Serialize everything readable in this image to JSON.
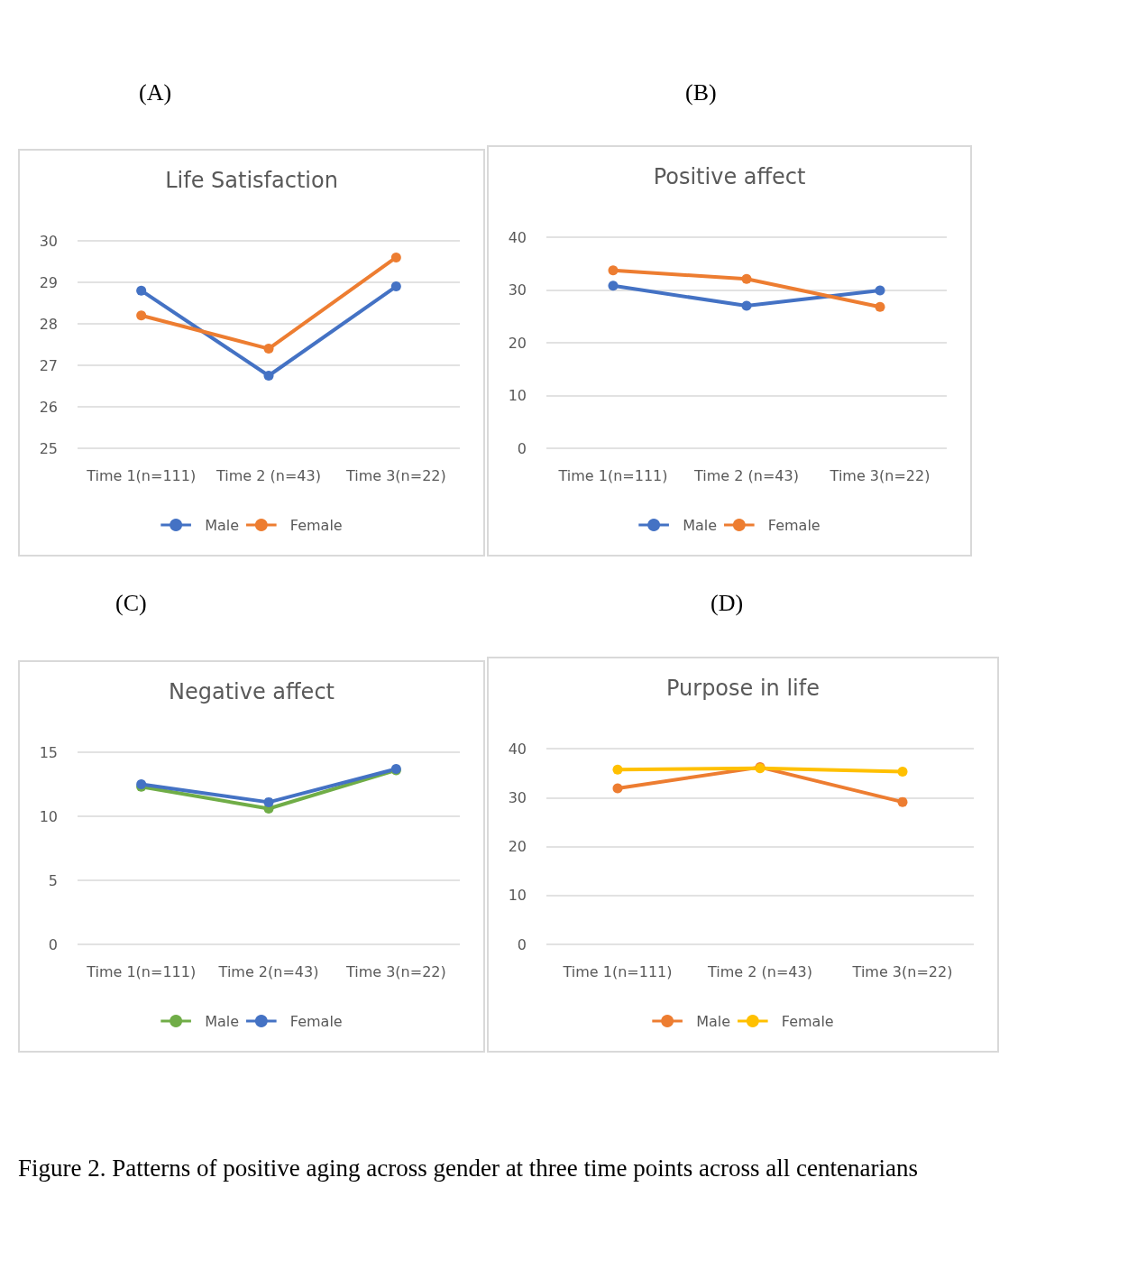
{
  "chart_data": [
    {
      "type": "line",
      "title": "Life Satisfaction",
      "categories": [
        "Time 1(n=111)",
        "Time 2 (n=43)",
        "Time 3(n=22)"
      ],
      "series": [
        {
          "name": "Male",
          "color": "#4472c4",
          "values": [
            28.8,
            26.75,
            28.9
          ]
        },
        {
          "name": "Female",
          "color": "#ed7d31",
          "values": [
            28.2,
            27.4,
            29.6
          ]
        }
      ],
      "ylim": [
        25,
        30
      ],
      "yticks": [
        25,
        26,
        27,
        28,
        29,
        30
      ],
      "grid": "y",
      "legend": "bottom",
      "marker": "circle",
      "line_style": "solid",
      "annotations": [
        "(A)"
      ]
    },
    {
      "type": "line",
      "title": "Positive affect",
      "categories": [
        "Time 1(n=111)",
        "Time 2 (n=43)",
        "Time 3(n=22)"
      ],
      "series": [
        {
          "name": "Male",
          "color": "#4472c4",
          "values": [
            30.8,
            27.0,
            29.9
          ]
        },
        {
          "name": "Female",
          "color": "#ed7d31",
          "values": [
            33.7,
            32.1,
            26.8
          ]
        }
      ],
      "ylim": [
        0,
        40
      ],
      "yticks": [
        0,
        10,
        20,
        30,
        40
      ],
      "grid": "y",
      "legend": "bottom",
      "marker": "circle",
      "line_style": "solid",
      "annotations": [
        "(B)"
      ]
    },
    {
      "type": "line",
      "title": "Negative affect",
      "categories": [
        "Time 1(n=111)",
        "Time 2(n=43)",
        "Time 3(n=22)"
      ],
      "series": [
        {
          "name": "Male",
          "color": "#70ad47",
          "values": [
            12.3,
            10.6,
            13.6
          ]
        },
        {
          "name": "Female",
          "color": "#4472c4",
          "values": [
            12.5,
            11.1,
            13.7
          ]
        }
      ],
      "ylim": [
        0,
        15
      ],
      "yticks": [
        0,
        5,
        10,
        15
      ],
      "grid": "y",
      "legend": "bottom",
      "marker": "circle",
      "line_style": "solid",
      "annotations": [
        "(C)"
      ]
    },
    {
      "type": "line",
      "title": "Purpose in life",
      "categories": [
        "Time 1(n=111)",
        "Time 2 (n=43)",
        "Time 3(n=22)"
      ],
      "series": [
        {
          "name": "Male",
          "color": "#ed7d31",
          "values": [
            31.9,
            36.2,
            29.1
          ]
        },
        {
          "name": "Female",
          "color": "#ffc000",
          "values": [
            35.7,
            36.0,
            35.3
          ]
        }
      ],
      "ylim": [
        0,
        40
      ],
      "yticks": [
        0,
        10,
        20,
        30,
        40
      ],
      "grid": "y",
      "legend": "bottom",
      "marker": "circle",
      "line_style": "solid",
      "annotations": [
        "(D)",
        "Figure 2. Patterns of positive aging across gender at three time points across all centenarians"
      ]
    }
  ]
}
